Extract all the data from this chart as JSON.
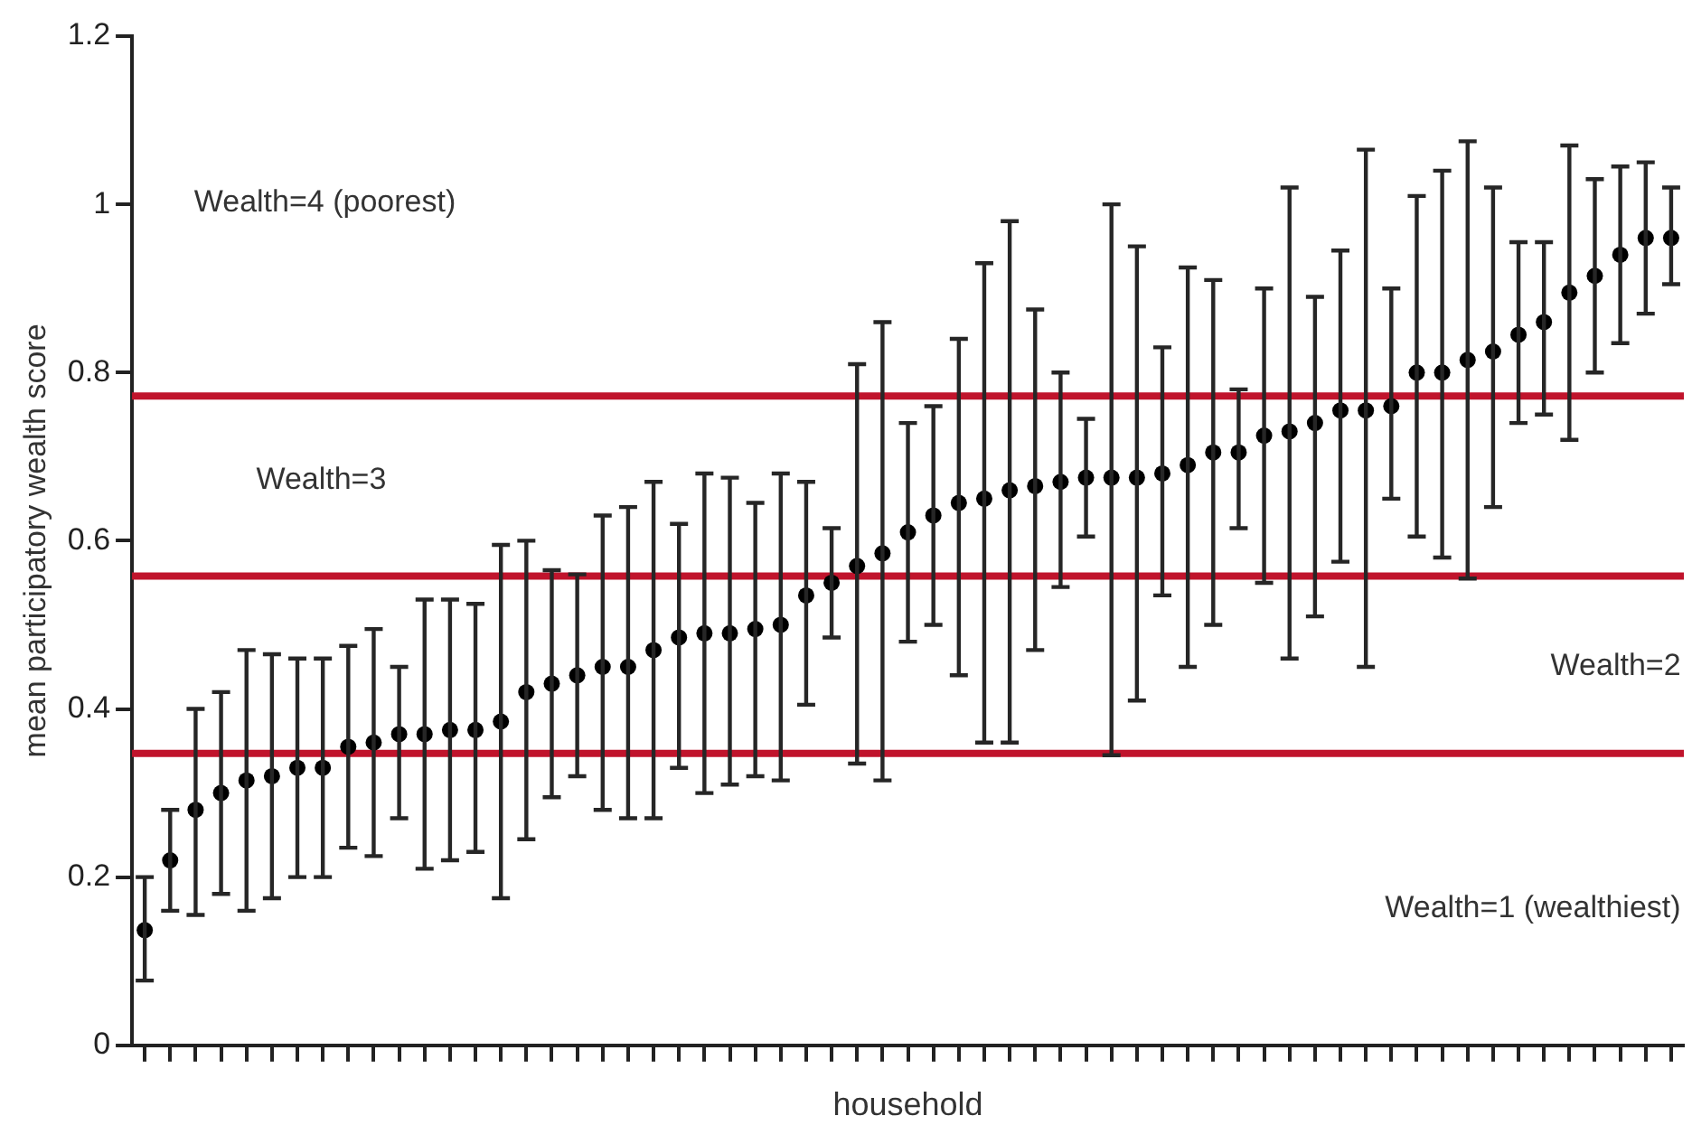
{
  "chart_data": {
    "type": "scatter",
    "xlabel": "household",
    "ylabel": "mean participatory wealth score",
    "categories": [
      null,
      null,
      null,
      null,
      null,
      null,
      null,
      null,
      null,
      null,
      null,
      null,
      null,
      null,
      null,
      null,
      null,
      null,
      null,
      null,
      null,
      null,
      null,
      null,
      null,
      null,
      null,
      null,
      null,
      null,
      null,
      null,
      null,
      null,
      null,
      null,
      null,
      null,
      null,
      null,
      null,
      null,
      null,
      null,
      null,
      null,
      null,
      null,
      null,
      null,
      null,
      null,
      null,
      null,
      null,
      null,
      null,
      null,
      null,
      null,
      null
    ],
    "series": [
      {
        "color": "#000000",
        "values": [
          0.137,
          0.22,
          0.28,
          0.3,
          0.315,
          0.32,
          0.33,
          0.33,
          0.355,
          0.36,
          0.37,
          0.37,
          0.375,
          0.375,
          0.385,
          0.42,
          0.43,
          0.44,
          0.45,
          0.45,
          0.47,
          0.485,
          0.49,
          0.49,
          0.495,
          0.5,
          0.535,
          0.55,
          0.57,
          0.585,
          0.61,
          0.63,
          0.645,
          0.65,
          0.66,
          0.665,
          0.67,
          0.675,
          0.675,
          0.675,
          0.68,
          0.69,
          0.705,
          0.705,
          0.725,
          0.73,
          0.74,
          0.755,
          0.755,
          0.76,
          0.8,
          0.8,
          0.815,
          0.825,
          0.845,
          0.86,
          0.895,
          0.915,
          0.94,
          0.96,
          0.96
        ],
        "errors": [
          [
            0.077,
            0.2
          ],
          [
            0.16,
            0.28
          ],
          [
            0.155,
            0.4
          ],
          [
            0.18,
            0.42
          ],
          [
            0.16,
            0.47
          ],
          [
            0.175,
            0.465
          ],
          [
            0.2,
            0.46
          ],
          [
            0.2,
            0.46
          ],
          [
            0.235,
            0.475
          ],
          [
            0.225,
            0.495
          ],
          [
            0.27,
            0.45
          ],
          [
            0.21,
            0.53
          ],
          [
            0.22,
            0.53
          ],
          [
            0.23,
            0.525
          ],
          [
            0.175,
            0.595
          ],
          [
            0.245,
            0.6
          ],
          [
            0.295,
            0.565
          ],
          [
            0.32,
            0.56
          ],
          [
            0.28,
            0.63
          ],
          [
            0.27,
            0.64
          ],
          [
            0.27,
            0.67
          ],
          [
            0.33,
            0.62
          ],
          [
            0.3,
            0.68
          ],
          [
            0.31,
            0.675
          ],
          [
            0.32,
            0.645
          ],
          [
            0.315,
            0.68
          ],
          [
            0.405,
            0.67
          ],
          [
            0.485,
            0.615
          ],
          [
            0.335,
            0.81
          ],
          [
            0.315,
            0.86
          ],
          [
            0.48,
            0.74
          ],
          [
            0.5,
            0.76
          ],
          [
            0.44,
            0.84
          ],
          [
            0.36,
            0.93
          ],
          [
            0.36,
            0.98
          ],
          [
            0.47,
            0.875
          ],
          [
            0.545,
            0.8
          ],
          [
            0.605,
            0.745
          ],
          [
            0.345,
            1.0
          ],
          [
            0.41,
            0.95
          ],
          [
            0.535,
            0.83
          ],
          [
            0.45,
            0.925
          ],
          [
            0.5,
            0.91
          ],
          [
            0.615,
            0.78
          ],
          [
            0.55,
            0.9
          ],
          [
            0.46,
            1.02
          ],
          [
            0.51,
            0.89
          ],
          [
            0.575,
            0.945
          ],
          [
            0.45,
            1.065
          ],
          [
            0.65,
            0.9
          ],
          [
            0.605,
            1.01
          ],
          [
            0.58,
            1.04
          ],
          [
            0.555,
            1.075
          ],
          [
            0.64,
            1.02
          ],
          [
            0.74,
            0.955
          ],
          [
            0.75,
            0.955
          ],
          [
            0.72,
            1.07
          ],
          [
            0.8,
            1.03
          ],
          [
            0.835,
            1.045
          ],
          [
            0.87,
            1.05
          ],
          [
            0.905,
            1.02
          ]
        ]
      }
    ],
    "ylim": [
      0,
      1.2
    ],
    "yticks": [
      0,
      0.2,
      0.4,
      0.6,
      0.8,
      1,
      1.2
    ],
    "grid": false,
    "legend": false,
    "tick_labels": "y",
    "marker": "circle",
    "ref_lines": [
      {
        "axis": "y",
        "value": 0.772,
        "color": "#c0142c"
      },
      {
        "axis": "y",
        "value": 0.558,
        "color": "#c0142c"
      },
      {
        "axis": "y",
        "value": 0.347,
        "color": "#c0142c"
      }
    ],
    "annotations": [
      "Wealth=4 (poorest)",
      "Wealth=3",
      "Wealth=2",
      "Wealth=1 (wealthiest)"
    ]
  }
}
